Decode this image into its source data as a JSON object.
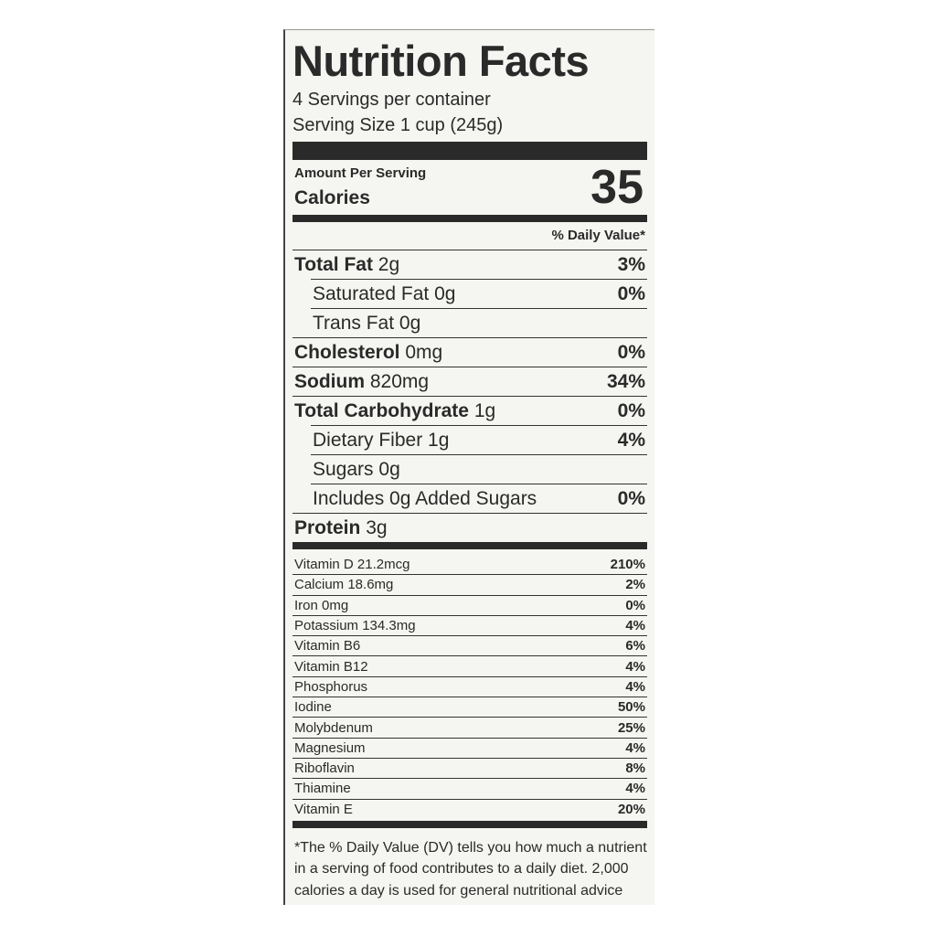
{
  "title": "Nutrition Facts",
  "servings_per_container": "4 Servings per container",
  "serving_size": "Serving Size 1 cup (245g)",
  "amount_per_serving": "Amount Per Serving",
  "calories_label": "Calories",
  "calories_value": "35",
  "daily_value_header": "% Daily Value*",
  "nutrients": [
    {
      "name": "Total Fat",
      "amount": "2g",
      "dv": "3%",
      "bold": true,
      "indent": false
    },
    {
      "name": "Saturated Fat",
      "amount": "0g",
      "dv": "0%",
      "bold": false,
      "indent": true
    },
    {
      "name": "Trans Fat",
      "amount": "0g",
      "dv": "",
      "bold": false,
      "indent": true
    },
    {
      "name": "Cholesterol",
      "amount": "0mg",
      "dv": "0%",
      "bold": true,
      "indent": false
    },
    {
      "name": "Sodium",
      "amount": "820mg",
      "dv": "34%",
      "bold": true,
      "indent": false
    },
    {
      "name": "Total Carbohydrate",
      "amount": "1g",
      "dv": "0%",
      "bold": true,
      "indent": false
    },
    {
      "name": "Dietary Fiber",
      "amount": "1g",
      "dv": "4%",
      "bold": false,
      "indent": true
    },
    {
      "name": "Sugars",
      "amount": "0g",
      "dv": "",
      "bold": false,
      "indent": true
    },
    {
      "name": "Includes 0g Added Sugars",
      "amount": "",
      "dv": "0%",
      "bold": false,
      "indent": true
    },
    {
      "name": "Protein",
      "amount": "3g",
      "dv": "",
      "bold": true,
      "indent": false
    }
  ],
  "vitamins": [
    {
      "name": "Vitamin D 21.2mcg",
      "dv": "210%"
    },
    {
      "name": "Calcium 18.6mg",
      "dv": "2%"
    },
    {
      "name": "Iron 0mg",
      "dv": "0%"
    },
    {
      "name": "Potassium 134.3mg",
      "dv": "4%"
    },
    {
      "name": "Vitamin B6",
      "dv": "6%"
    },
    {
      "name": "Vitamin B12",
      "dv": "4%"
    },
    {
      "name": "Phosphorus",
      "dv": "4%"
    },
    {
      "name": "Iodine",
      "dv": "50%"
    },
    {
      "name": "Molybdenum",
      "dv": "25%"
    },
    {
      "name": "Magnesium",
      "dv": "4%"
    },
    {
      "name": "Riboflavin",
      "dv": "8%"
    },
    {
      "name": "Thiamine",
      "dv": "4%"
    },
    {
      "name": "Vitamin E",
      "dv": "20%"
    }
  ],
  "footnote": "*The % Daily Value (DV) tells you how much a nutrient in a serving of food contributes to a daily diet. 2,000 calories a day is used for general nutritional advice"
}
